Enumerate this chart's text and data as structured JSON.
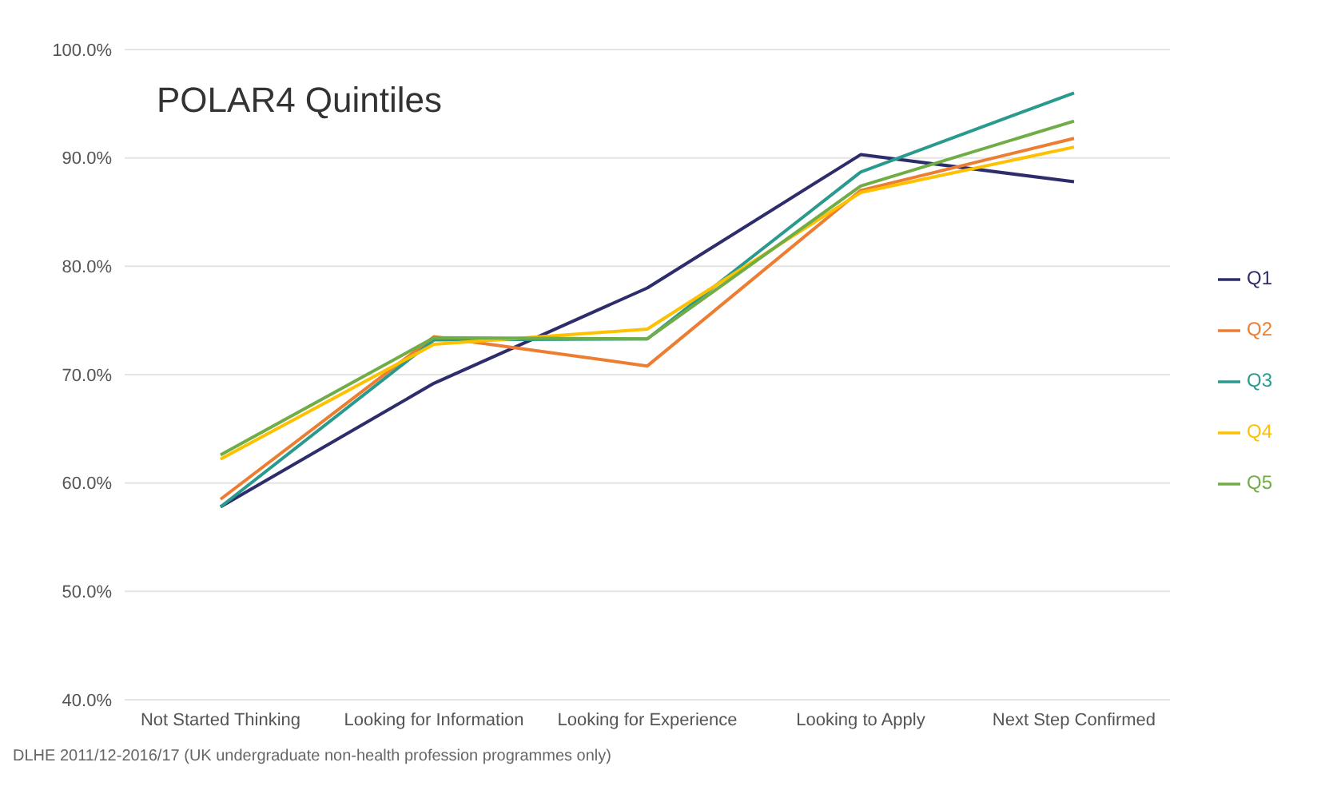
{
  "chart_data": {
    "type": "line",
    "title": "POLAR4 Quintiles",
    "categories": [
      "Not Started Thinking",
      "Looking for Information",
      "Looking for Experience",
      "Looking to Apply",
      "Next Step Confirmed"
    ],
    "series": [
      {
        "name": "Q1",
        "color": "#2e2d6b",
        "values": [
          57.8,
          69.2,
          78.0,
          90.3,
          87.8
        ]
      },
      {
        "name": "Q2",
        "color": "#ed7d31",
        "values": [
          58.5,
          73.5,
          70.8,
          87.0,
          91.8
        ]
      },
      {
        "name": "Q3",
        "color": "#2a9a8f",
        "values": [
          57.8,
          73.2,
          73.3,
          88.7,
          96.0
        ]
      },
      {
        "name": "Q4",
        "color": "#ffc000",
        "values": [
          62.2,
          72.8,
          74.2,
          86.8,
          91.0
        ]
      },
      {
        "name": "Q5",
        "color": "#70ad47",
        "values": [
          62.6,
          73.4,
          73.3,
          87.4,
          93.4
        ]
      }
    ],
    "ylim": [
      40,
      100
    ],
    "yticks": [
      {
        "value": 40,
        "label": "40.0%"
      },
      {
        "value": 50,
        "label": "50.0%"
      },
      {
        "value": 60,
        "label": "60.0%"
      },
      {
        "value": 70,
        "label": "70.0%"
      },
      {
        "value": 80,
        "label": "80.0%"
      },
      {
        "value": 90,
        "label": "90.0%"
      },
      {
        "value": 100,
        "label": "100.0%"
      }
    ],
    "grid": "y",
    "legend": "right",
    "marker": "none",
    "line_style": "solid",
    "annotations": [
      "DLHE 2011/12-2016/17 (UK undergraduate  non-health profession programmes only)"
    ]
  }
}
